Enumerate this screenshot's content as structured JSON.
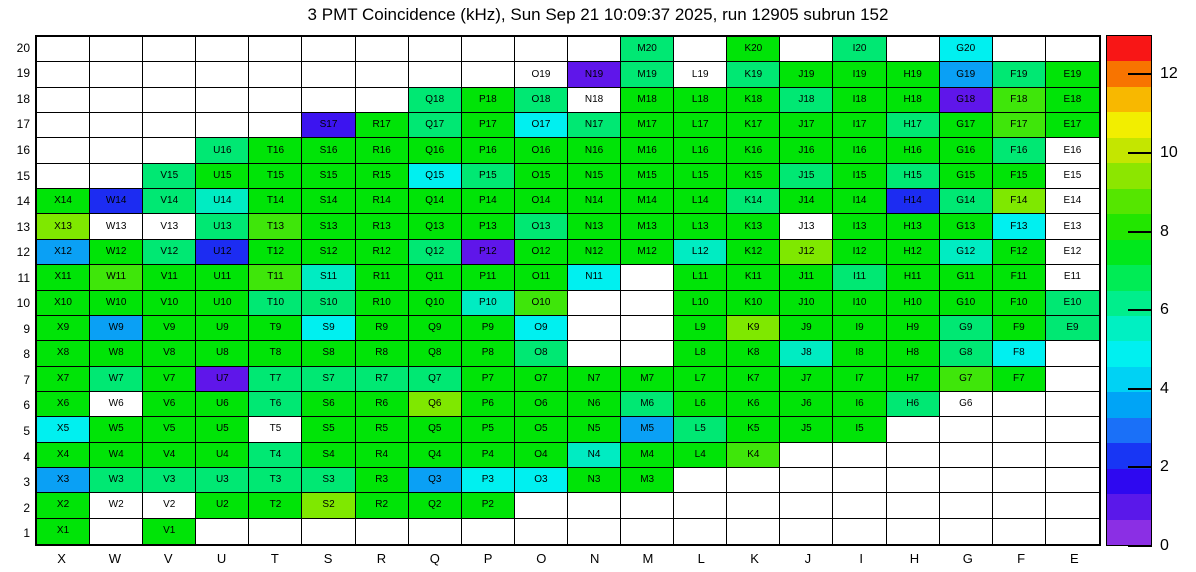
{
  "chart_data": {
    "type": "heatmap",
    "title": "3 PMT Coincidence (kHz), Sun Sep 21 10:09:37 2025, run 12905 subrun 152",
    "x_categories": [
      "X",
      "W",
      "V",
      "U",
      "T",
      "S",
      "R",
      "Q",
      "P",
      "O",
      "N",
      "M",
      "L",
      "K",
      "J",
      "I",
      "H",
      "G",
      "F",
      "E"
    ],
    "y_categories": [
      20,
      19,
      18,
      17,
      16,
      15,
      14,
      13,
      12,
      11,
      10,
      9,
      8,
      7,
      6,
      5,
      4,
      3,
      2,
      1
    ],
    "cell_codes_top_to_bottom": [
      "EEEEEEEEEEESEGESECEE",
      "EEEEEEEEEWVSWSGGGDSG",
      "EEEEEEESGSWGGGSGGVYG",
      "EEEEEIGSGCSGGGGGSGYG",
      "EEESGGGGGGGGGGGGGGSW",
      "EESGGGGCSGGGGGSGSGGW",
      "GBSTGGGGGGGGGSGGBSHW",
      "HWWSYGGGGSGGGGWGGGCW",
      "DGSBGGGSVGGGTGHGGTGW",
      "GYGGYTGGGGCEGGGSGGGW",
      "GGGGSSGGTYEEGGGGGGGS",
      "GDGGGCGGGCEEGHGGGSGS",
      "GGGGGGGGGSEEGGTGGSCE",
      "GSGVSSSSGGGGGGGGGYGE",
      "GWGGSGGHGGGSGGGGSWEE",
      "CGGGWGGGGGGDSGGGEEEE",
      "GGGGSGGGGGTGGYEEEEEE",
      "DSSSSSGDCCGGEEEEEEEE",
      "GWWGGHGGGEEEEEEEEEEE",
      "GEGEEEEEEEEEEEEEEEEE"
    ],
    "code_legend": {
      "G": {
        "color": "#00e407",
        "approx_kHz": "6.5-7"
      },
      "Y": {
        "color": "#3fe60a",
        "approx_kHz": "7-7.5"
      },
      "H": {
        "color": "#7fe800",
        "approx_kHz": "7.5-8"
      },
      "S": {
        "color": "#00e873",
        "approx_kHz": "5.5-6"
      },
      "T": {
        "color": "#00ecc2",
        "approx_kHz": "4.5-5"
      },
      "C": {
        "color": "#00f0f0",
        "approx_kHz": "4-4.5"
      },
      "D": {
        "color": "#0aa0f5",
        "approx_kHz": "3-3.5"
      },
      "B": {
        "color": "#1c2cf2",
        "approx_kHz": "2-2.5"
      },
      "I": {
        "color": "#3c14f0",
        "approx_kHz": "1-1.5"
      },
      "V": {
        "color": "#5f16ea",
        "approx_kHz": "0.5-1"
      },
      "W": {
        "color": "#ffffff",
        "approx_kHz": "0 (labeled cell, empty fill)"
      },
      "E": {
        "color": "#ffffff",
        "approx_kHz": "no data (unlabeled cell)"
      }
    },
    "colorbar": {
      "min": 0,
      "max": 13,
      "ticks": [
        0,
        2,
        4,
        6,
        8,
        10,
        12
      ],
      "bands_bottom_to_top": [
        "#8b2fe4",
        "#5a18ea",
        "#2e08f0",
        "#1836f4",
        "#1a70f8",
        "#00a4f6",
        "#00d2f4",
        "#00f0f0",
        "#00f0c2",
        "#00ee8c",
        "#00ec55",
        "#00e81c",
        "#22e600",
        "#55e600",
        "#8ce600",
        "#c4e600",
        "#f2ee00",
        "#f8b800",
        "#f87400",
        "#f81616"
      ],
      "legend_position": "right"
    },
    "grid": "on",
    "xlabel": "",
    "ylabel": ""
  }
}
